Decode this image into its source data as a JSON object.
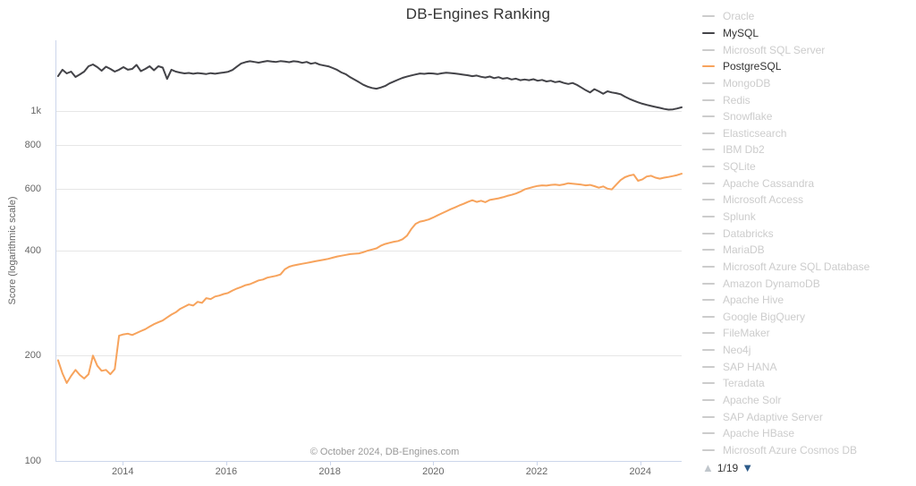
{
  "chart_data": {
    "type": "line",
    "title": "DB-Engines Ranking",
    "ylabel": "Score (logarithmic scale)",
    "y_scale": "logarithmic",
    "credits": "© October 2024, DB-Engines.com",
    "legend_position": "right",
    "grid": true,
    "x_axis": {
      "min": 2012.7,
      "max": 2024.8,
      "ticks": [
        2014,
        2016,
        2018,
        2020,
        2022,
        2024
      ]
    },
    "y_axis": {
      "min": 100,
      "top": 1593,
      "ticks": [
        {
          "v": 1000,
          "label": "1k"
        },
        {
          "v": 800,
          "label": "800"
        },
        {
          "v": 600,
          "label": "600"
        },
        {
          "v": 400,
          "label": "400"
        },
        {
          "v": 200,
          "label": "200"
        },
        {
          "v": 100,
          "label": "100"
        }
      ]
    },
    "series": [
      {
        "name": "MySQL",
        "color": "#434348",
        "x_start": 2012.75,
        "x_end": 2024.8,
        "values": [
          1258,
          1312,
          1281,
          1296,
          1251,
          1273,
          1296,
          1343,
          1359,
          1335,
          1304,
          1339,
          1319,
          1296,
          1312,
          1335,
          1312,
          1319,
          1355,
          1300,
          1319,
          1343,
          1308,
          1343,
          1331,
          1235,
          1312,
          1296,
          1288,
          1281,
          1285,
          1278,
          1284,
          1280,
          1276,
          1283,
          1278,
          1284,
          1289,
          1295,
          1310,
          1340,
          1368,
          1380,
          1388,
          1381,
          1375,
          1383,
          1390,
          1385,
          1381,
          1389,
          1385,
          1379,
          1388,
          1384,
          1373,
          1381,
          1365,
          1373,
          1357,
          1349,
          1342,
          1327,
          1311,
          1289,
          1274,
          1249,
          1229,
          1209,
          1189,
          1174,
          1164,
          1158,
          1167,
          1179,
          1199,
          1214,
          1229,
          1244,
          1254,
          1264,
          1272,
          1280,
          1277,
          1282,
          1280,
          1275,
          1282,
          1287,
          1284,
          1280,
          1275,
          1270,
          1265,
          1258,
          1263,
          1253,
          1247,
          1255,
          1242,
          1250,
          1237,
          1243,
          1231,
          1237,
          1225,
          1231,
          1225,
          1233,
          1221,
          1227,
          1215,
          1221,
          1209,
          1215,
          1203,
          1195,
          1203,
          1187,
          1167,
          1147,
          1130,
          1155,
          1139,
          1121,
          1139,
          1130,
          1125,
          1117,
          1099,
          1084,
          1071,
          1059,
          1049,
          1041,
          1034,
          1027,
          1021,
          1014,
          1009,
          1011,
          1017,
          1025
        ]
      },
      {
        "name": "PostgreSQL",
        "color": "#f7a35c",
        "x_start": 2012.75,
        "x_end": 2024.8,
        "values": [
          194,
          178,
          167,
          175,
          182,
          176,
          172,
          177,
          200,
          187,
          181,
          182,
          177,
          183,
          228,
          230,
          231,
          229,
          232,
          235,
          238,
          242,
          246,
          249,
          252,
          257,
          262,
          266,
          272,
          276,
          280,
          278,
          285,
          283,
          292,
          290,
          295,
          297,
          300,
          302,
          307,
          311,
          314,
          318,
          320,
          324,
          328,
          330,
          334,
          336,
          338,
          341,
          353,
          359,
          362,
          364,
          366,
          368,
          370,
          372,
          374,
          376,
          378,
          381,
          384,
          386,
          388,
          390,
          391,
          392,
          395,
          399,
          402,
          405,
          412,
          417,
          420,
          423,
          425,
          430,
          440,
          460,
          476,
          483,
          486,
          490,
          496,
          503,
          510,
          517,
          524,
          530,
          537,
          543,
          550,
          556,
          550,
          554,
          549,
          557,
          560,
          563,
          567,
          572,
          576,
          581,
          588,
          597,
          602,
          607,
          611,
          613,
          612,
          615,
          616,
          614,
          617,
          622,
          620,
          618,
          616,
          613,
          615,
          610,
          604,
          609,
          600,
          597,
          616,
          635,
          647,
          654,
          658,
          632,
          638,
          650,
          653,
          645,
          641,
          645,
          648,
          652,
          656,
          662
        ]
      }
    ]
  },
  "legend": {
    "inactive_color": "#cccccc",
    "active_text_color": "#333333",
    "items": [
      {
        "label": "Oracle",
        "active": false
      },
      {
        "label": "MySQL",
        "active": true,
        "color": "#434348"
      },
      {
        "label": "Microsoft SQL Server",
        "active": false
      },
      {
        "label": "PostgreSQL",
        "active": true,
        "color": "#f7a35c"
      },
      {
        "label": "MongoDB",
        "active": false
      },
      {
        "label": "Redis",
        "active": false
      },
      {
        "label": "Snowflake",
        "active": false
      },
      {
        "label": "Elasticsearch",
        "active": false
      },
      {
        "label": "IBM Db2",
        "active": false
      },
      {
        "label": "SQLite",
        "active": false
      },
      {
        "label": "Apache Cassandra",
        "active": false
      },
      {
        "label": "Microsoft Access",
        "active": false
      },
      {
        "label": "Splunk",
        "active": false
      },
      {
        "label": "Databricks",
        "active": false
      },
      {
        "label": "MariaDB",
        "active": false
      },
      {
        "label": "Microsoft Azure SQL Database",
        "active": false
      },
      {
        "label": "Amazon DynamoDB",
        "active": false
      },
      {
        "label": "Apache Hive",
        "active": false
      },
      {
        "label": "Google BigQuery",
        "active": false
      },
      {
        "label": "FileMaker",
        "active": false
      },
      {
        "label": "Neo4j",
        "active": false
      },
      {
        "label": "SAP HANA",
        "active": false
      },
      {
        "label": "Teradata",
        "active": false
      },
      {
        "label": "Apache Solr",
        "active": false
      },
      {
        "label": "SAP Adaptive Server",
        "active": false
      },
      {
        "label": "Apache HBase",
        "active": false
      },
      {
        "label": "Microsoft Azure Cosmos DB",
        "active": false
      }
    ],
    "pagination": {
      "up_icon": "▲",
      "current": "1/19",
      "down_icon": "▼",
      "up_color": "#c0c6cc",
      "down_color": "#2e5c8a"
    }
  },
  "style_colors": {
    "grid": "#e6e6e6",
    "axis": "#ccd6eb",
    "tick_text": "#666666",
    "title_text": "#333333",
    "credits_text": "#999999"
  }
}
